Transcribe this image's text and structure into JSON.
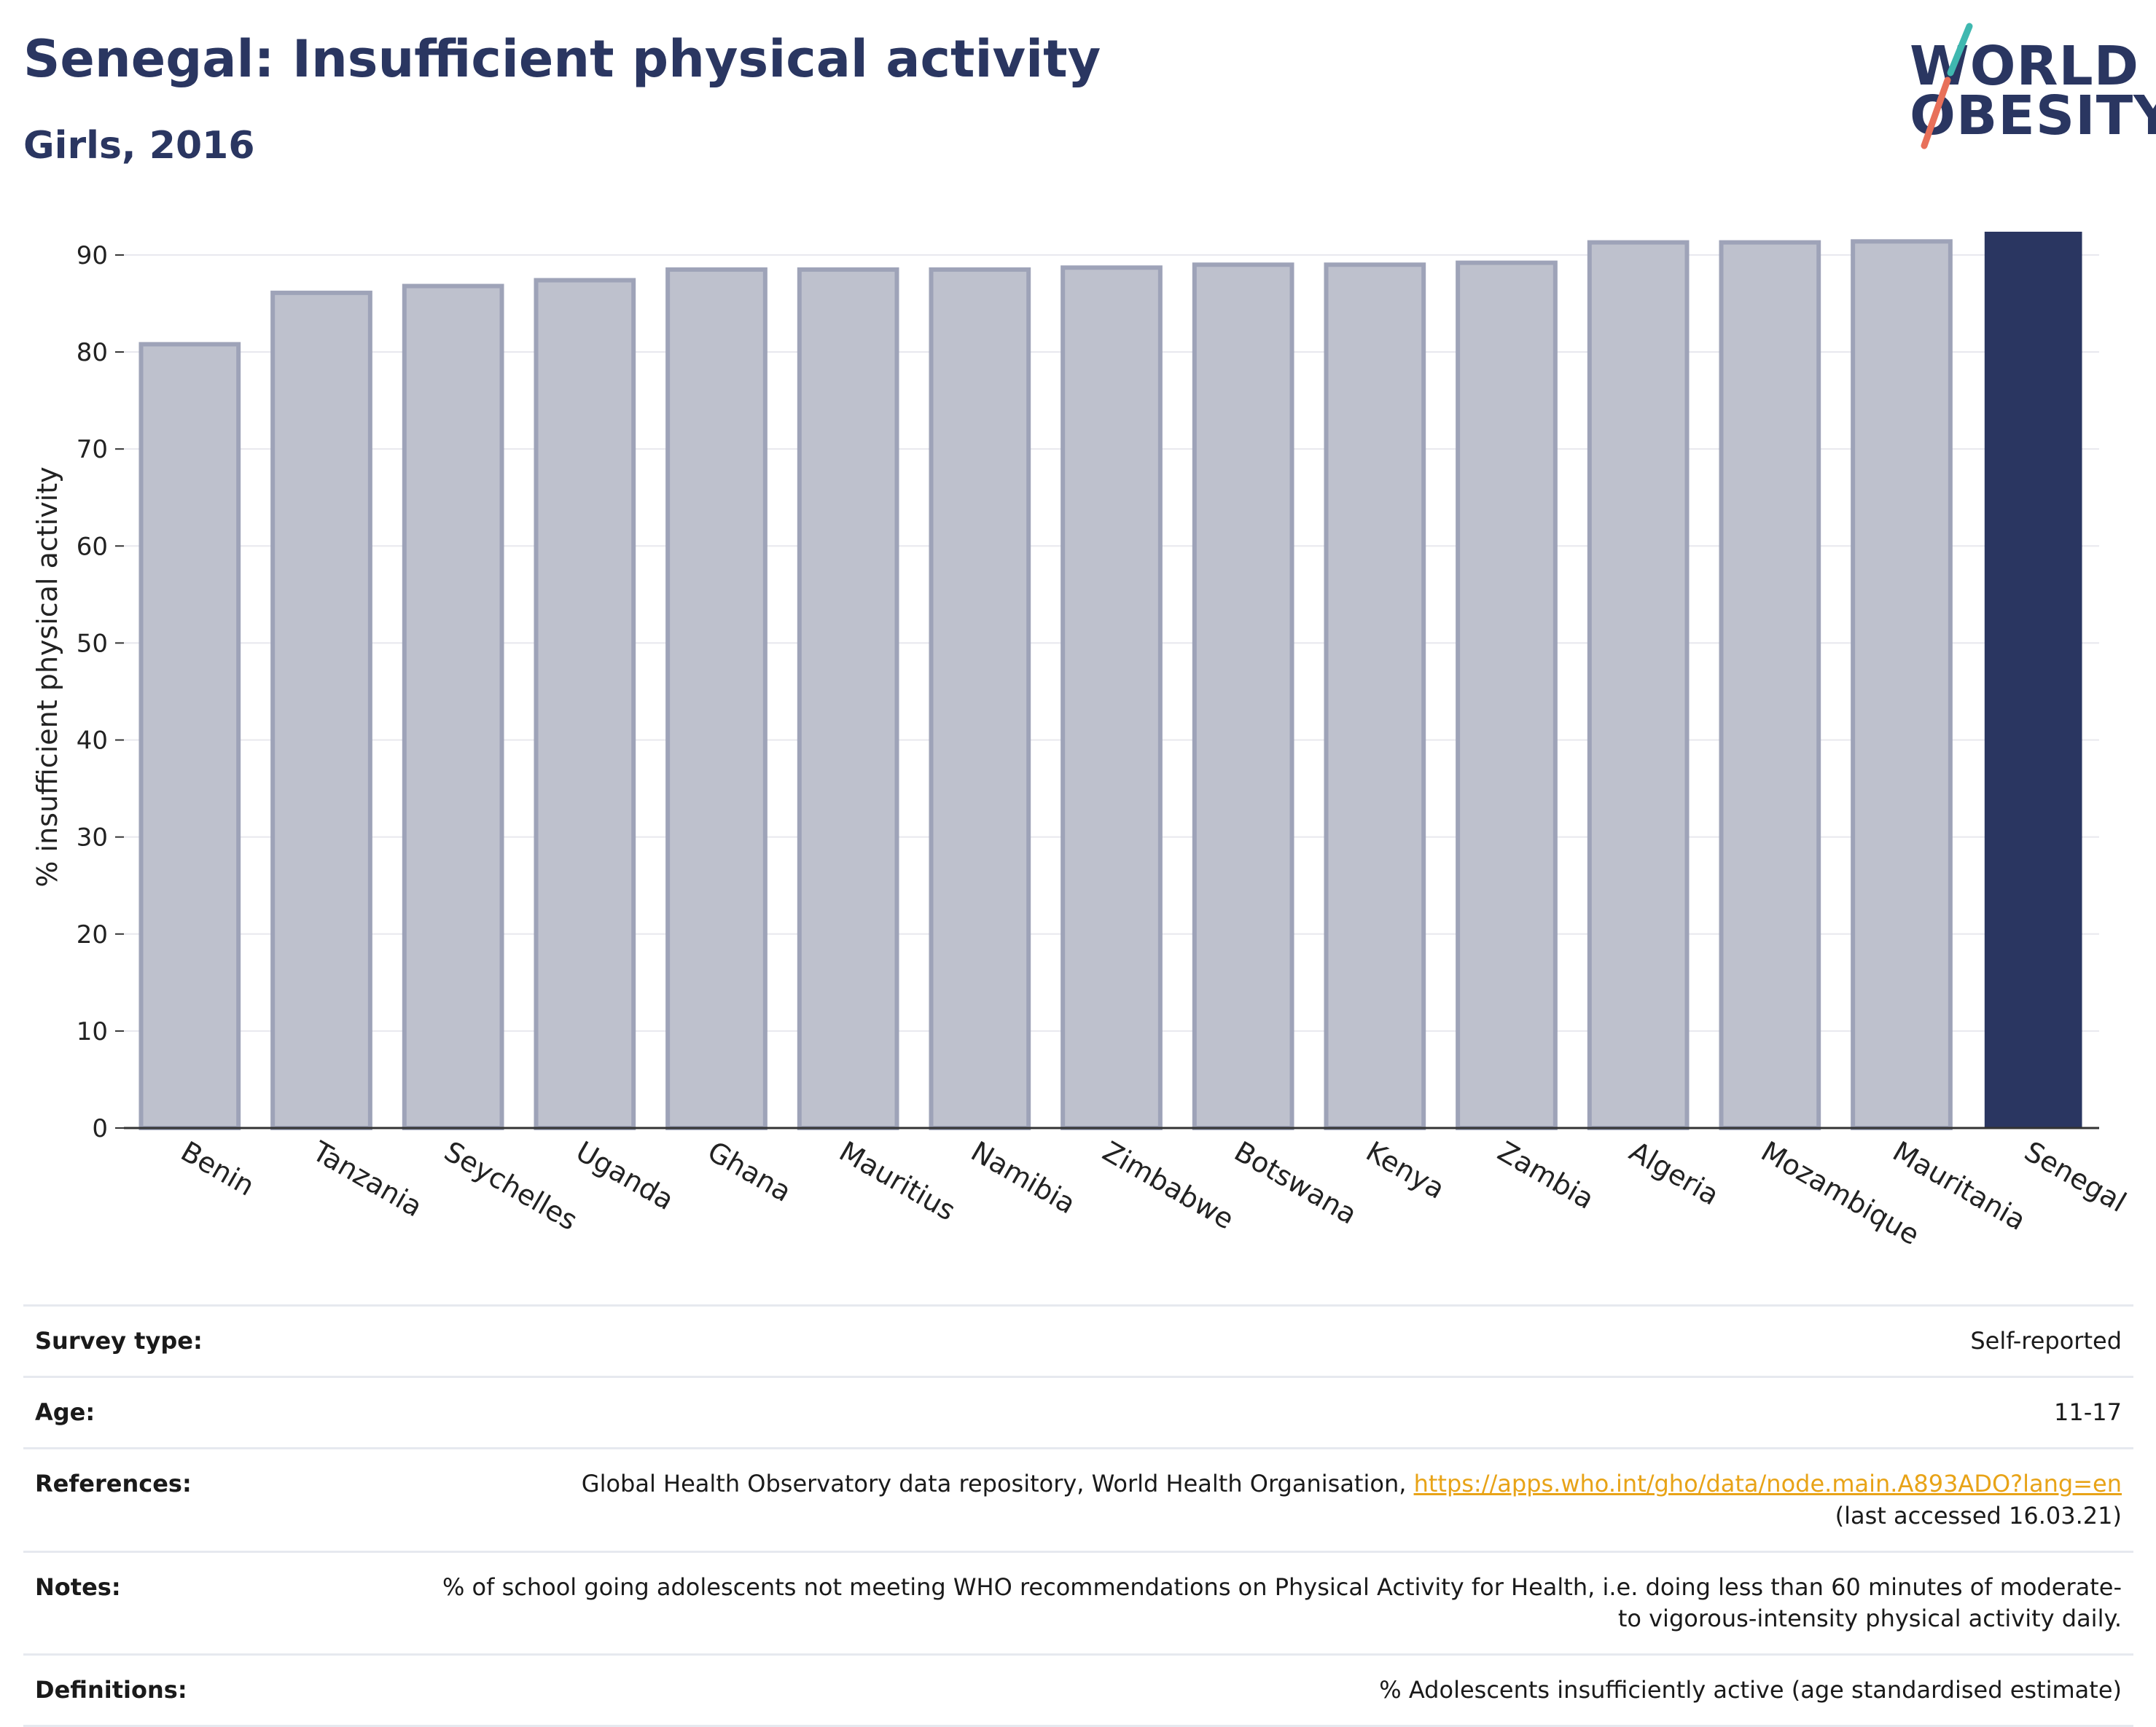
{
  "header": {
    "title": "Senegal: Insufficient physical activity",
    "subtitle": "Girls, 2016"
  },
  "logo": {
    "line1": "WORLD",
    "line2": "OBESITY",
    "colors": {
      "text": "#2a3661",
      "slash_top": "#3fb8b0",
      "slash_bottom": "#e8705a"
    }
  },
  "chart_data": {
    "type": "bar",
    "title": "Senegal: Insufficient physical activity",
    "subtitle": "Girls, 2016",
    "xlabel": "",
    "ylabel": "% insufficient physical activity",
    "ylim": [
      0,
      93
    ],
    "yticks": [
      0,
      10,
      20,
      30,
      40,
      50,
      60,
      70,
      80,
      90
    ],
    "grid": true,
    "categories": [
      "Benin",
      "Tanzania",
      "Seychelles",
      "Uganda",
      "Ghana",
      "Mauritius",
      "Namibia",
      "Zimbabwe",
      "Botswana",
      "Kenya",
      "Zambia",
      "Algeria",
      "Mozambique",
      "Mauritania",
      "Senegal"
    ],
    "values": [
      80.8,
      86.1,
      86.8,
      87.4,
      88.5,
      88.5,
      88.5,
      88.7,
      89.0,
      89.0,
      89.2,
      91.3,
      91.3,
      91.4,
      92.4
    ],
    "highlight": "Senegal",
    "colors": {
      "bar": "#bec1cd",
      "bar_edge": "#9ea3b8",
      "highlight": "#2a3661",
      "grid": "#e8e8ee",
      "axis": "#333333"
    }
  },
  "meta": {
    "rows": [
      {
        "key": "Survey type:",
        "value": "Self-reported"
      },
      {
        "key": "Age:",
        "value": "11-17"
      },
      {
        "key": "References:",
        "value": "Global Health Observatory data repository, World Health Organisation, ",
        "link": "https://apps.who.int/gho/data/node.main.A893ADO?lang=en",
        "suffix": "(last accessed 16.03.21)"
      },
      {
        "key": "Notes:",
        "value": "% of school going adolescents not meeting WHO recommendations on Physical Activity for Health, i.e. doing less than 60 minutes of moderate- to vigorous-intensity physical activity daily."
      },
      {
        "key": "Definitions:",
        "value": "% Adolescents insufficiently active (age standardised estimate)"
      }
    ]
  }
}
